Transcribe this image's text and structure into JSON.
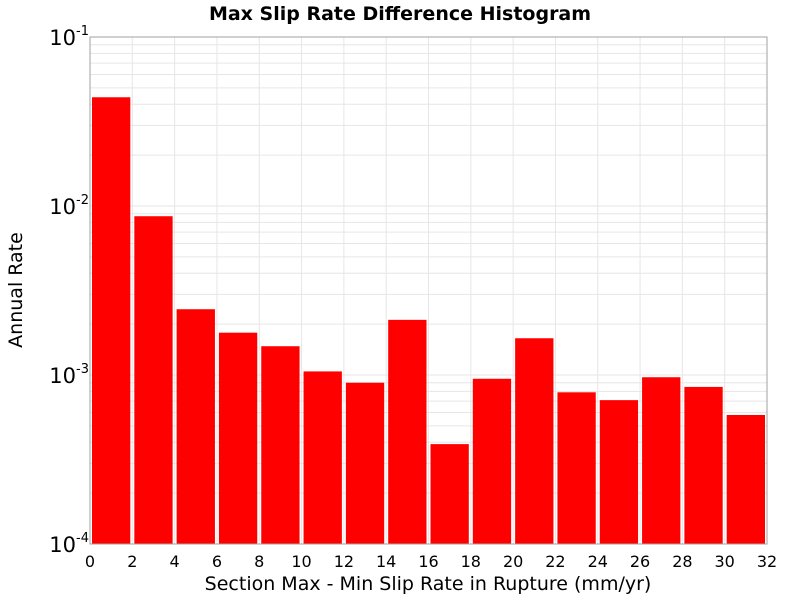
{
  "chart_data": {
    "type": "bar",
    "title": "Max Slip Rate Difference Histogram",
    "xlabel": "Section Max - Min Slip Rate in Rupture (mm/yr)",
    "ylabel": "Annual Rate",
    "xlim": [
      0,
      32
    ],
    "ylim": [
      0.0001,
      0.1
    ],
    "yscale": "log",
    "grid": true,
    "bar_color": "#ff0000",
    "grid_color": "#e6e6e6",
    "frame_color": "#a0a0a0",
    "bin_width": 2,
    "xticks": [
      "0",
      "2",
      "4",
      "6",
      "8",
      "10",
      "12",
      "14",
      "16",
      "18",
      "20",
      "22",
      "24",
      "26",
      "28",
      "30",
      "32"
    ],
    "yticks": [
      {
        "base": "10",
        "exp": "-4",
        "value": 0.0001
      },
      {
        "base": "10",
        "exp": "-3",
        "value": 0.001
      },
      {
        "base": "10",
        "exp": "-2",
        "value": 0.01
      },
      {
        "base": "10",
        "exp": "-1",
        "value": 0.1
      }
    ],
    "bins": [
      {
        "x": 1,
        "y": 0.044
      },
      {
        "x": 3,
        "y": 0.0087
      },
      {
        "x": 5,
        "y": 0.00245
      },
      {
        "x": 7,
        "y": 0.00178
      },
      {
        "x": 9,
        "y": 0.00148
      },
      {
        "x": 11,
        "y": 0.00105
      },
      {
        "x": 13,
        "y": 0.0009
      },
      {
        "x": 15,
        "y": 0.00212
      },
      {
        "x": 17,
        "y": 0.00039
      },
      {
        "x": 19,
        "y": 0.00095
      },
      {
        "x": 21,
        "y": 0.00165
      },
      {
        "x": 23,
        "y": 0.00079
      },
      {
        "x": 25,
        "y": 0.00071
      },
      {
        "x": 27,
        "y": 0.00097
      },
      {
        "x": 29,
        "y": 0.00085
      },
      {
        "x": 31,
        "y": 0.00058
      }
    ]
  }
}
